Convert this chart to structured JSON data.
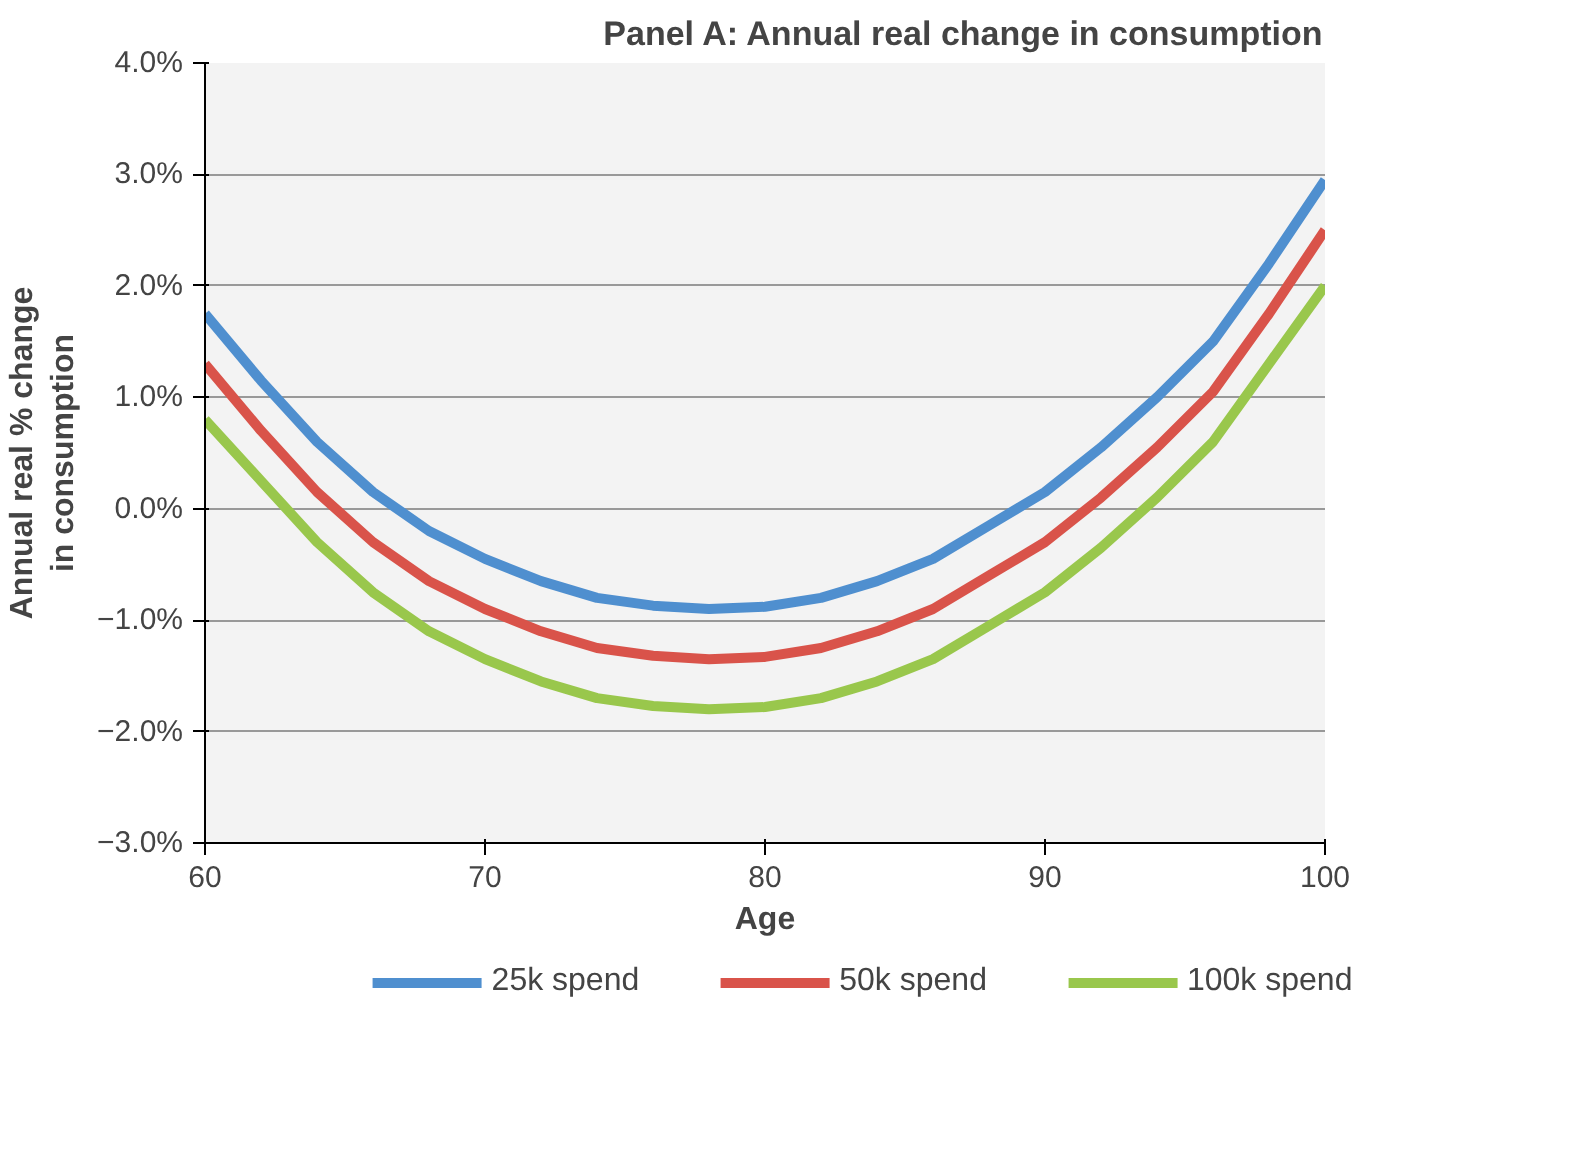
{
  "chart_data": {
    "type": "line",
    "title": "Panel A: Annual real change in consumption",
    "xlabel": "Age",
    "ylabel": "Annual real % change\nin consumption",
    "x": [
      60,
      62,
      64,
      66,
      68,
      70,
      72,
      74,
      76,
      78,
      80,
      82,
      84,
      86,
      88,
      90,
      92,
      94,
      96,
      98,
      100
    ],
    "series": [
      {
        "name": "25k spend",
        "color": "#4f8fcf",
        "values": [
          1.75,
          1.15,
          0.6,
          0.15,
          -0.2,
          -0.45,
          -0.65,
          -0.8,
          -0.87,
          -0.9,
          -0.88,
          -0.8,
          -0.65,
          -0.45,
          -0.15,
          0.15,
          0.55,
          1.0,
          1.5,
          2.2,
          2.95
        ]
      },
      {
        "name": "50k spend",
        "color": "#d9534a",
        "values": [
          1.3,
          0.7,
          0.15,
          -0.3,
          -0.65,
          -0.9,
          -1.1,
          -1.25,
          -1.32,
          -1.35,
          -1.33,
          -1.25,
          -1.1,
          -0.9,
          -0.6,
          -0.3,
          0.1,
          0.55,
          1.05,
          1.75,
          2.5
        ]
      },
      {
        "name": "100k spend",
        "color": "#99c74c",
        "values": [
          0.8,
          0.25,
          -0.3,
          -0.75,
          -1.1,
          -1.35,
          -1.55,
          -1.7,
          -1.77,
          -1.8,
          -1.78,
          -1.7,
          -1.55,
          -1.35,
          -1.05,
          -0.75,
          -0.35,
          0.1,
          0.6,
          1.3,
          2.0
        ]
      }
    ],
    "xlim": [
      60,
      100
    ],
    "xticks": [
      60,
      70,
      80,
      90,
      100
    ],
    "ylim": [
      -3,
      4
    ],
    "yticks": [
      {
        "value": -3,
        "label": "−3.0%"
      },
      {
        "value": -2,
        "label": "−2.0%"
      },
      {
        "value": -1,
        "label": "−1.0%"
      },
      {
        "value": 0,
        "label": "0.0%"
      },
      {
        "value": 1,
        "label": "1.0%"
      },
      {
        "value": 2,
        "label": "2.0%"
      },
      {
        "value": 3,
        "label": "3.0%"
      },
      {
        "value": 4,
        "label": "4.0%"
      }
    ],
    "grid": "y",
    "legend": "bottom",
    "marker": "none",
    "line_style": "solid"
  }
}
